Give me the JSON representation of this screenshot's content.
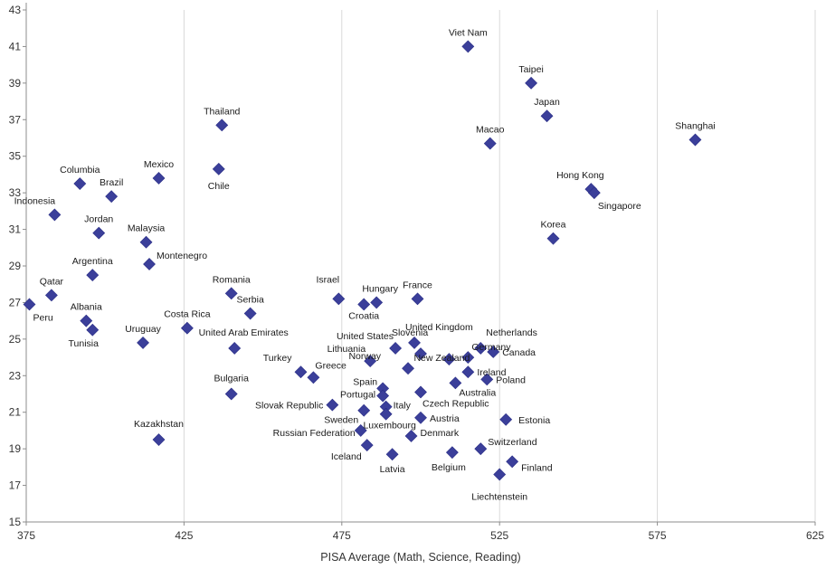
{
  "chart_data": {
    "type": "scatter",
    "title": "",
    "xlabel": "PISA Average  (Math, Science, Reading)",
    "ylabel": "",
    "xlim": [
      375,
      625
    ],
    "ylim": [
      15,
      43
    ],
    "x_ticks": [
      375,
      425,
      475,
      525,
      575,
      625
    ],
    "y_ticks": [
      15,
      17,
      19,
      21,
      23,
      25,
      27,
      29,
      31,
      33,
      35,
      37,
      39,
      41,
      43
    ],
    "grid": "vertical",
    "marker": "diamond",
    "colors": {
      "marker": "#3b3f9a",
      "title": "#2b3a9e"
    },
    "points": [
      {
        "label": "Viet Nam",
        "x": 515,
        "y": 41.0
      },
      {
        "label": "Taipei",
        "x": 535,
        "y": 39.0
      },
      {
        "label": "Japan",
        "x": 540,
        "y": 37.2
      },
      {
        "label": "Shanghai",
        "x": 587,
        "y": 35.9
      },
      {
        "label": "Macao",
        "x": 522,
        "y": 35.7
      },
      {
        "label": "Thailand",
        "x": 437,
        "y": 36.7
      },
      {
        "label": "Chile",
        "x": 436,
        "y": 34.3
      },
      {
        "label": "Mexico",
        "x": 417,
        "y": 33.8
      },
      {
        "label": "Columbia",
        "x": 392,
        "y": 33.5
      },
      {
        "label": "Brazil",
        "x": 402,
        "y": 32.8
      },
      {
        "label": "Hong Kong",
        "x": 554,
        "y": 33.2
      },
      {
        "label": "Singapore",
        "x": 555,
        "y": 33.0
      },
      {
        "label": "Indonesia",
        "x": 384,
        "y": 31.8
      },
      {
        "label": "Jordan",
        "x": 398,
        "y": 30.8
      },
      {
        "label": "Malaysia",
        "x": 413,
        "y": 30.3
      },
      {
        "label": "Korea",
        "x": 542,
        "y": 30.5
      },
      {
        "label": "Montenegro",
        "x": 414,
        "y": 29.1
      },
      {
        "label": "Argentina",
        "x": 396,
        "y": 28.5
      },
      {
        "label": "Qatar",
        "x": 383,
        "y": 27.4
      },
      {
        "label": "Peru",
        "x": 376,
        "y": 26.9
      },
      {
        "label": "Romania",
        "x": 440,
        "y": 27.5
      },
      {
        "label": "Serbia",
        "x": 446,
        "y": 26.4
      },
      {
        "label": "Israel",
        "x": 474,
        "y": 27.2
      },
      {
        "label": "Hungary",
        "x": 486,
        "y": 27.0
      },
      {
        "label": "France",
        "x": 499,
        "y": 27.2
      },
      {
        "label": "Croatia",
        "x": 482,
        "y": 26.9
      },
      {
        "label": "Albania",
        "x": 394,
        "y": 26.0
      },
      {
        "label": "Tunisia",
        "x": 396,
        "y": 25.5
      },
      {
        "label": "Costa Rica",
        "x": 426,
        "y": 25.6
      },
      {
        "label": "Uruguay",
        "x": 412,
        "y": 24.8
      },
      {
        "label": "United Arab Emirates",
        "x": 441,
        "y": 24.5
      },
      {
        "label": "Slovenia",
        "x": 492,
        "y": 24.5
      },
      {
        "label": "United Kingdom",
        "x": 498,
        "y": 24.8
      },
      {
        "label": "Netherlands",
        "x": 519,
        "y": 24.5
      },
      {
        "label": "Canada",
        "x": 523,
        "y": 24.3
      },
      {
        "label": "United States",
        "x": 500,
        "y": 24.2
      },
      {
        "label": "Germany",
        "x": 515,
        "y": 24.0
      },
      {
        "label": "Lithuania",
        "x": 484,
        "y": 23.8
      },
      {
        "label": "Ireland",
        "x": 515,
        "y": 23.2
      },
      {
        "label": "Turkey",
        "x": 462,
        "y": 23.2
      },
      {
        "label": "Greece",
        "x": 466,
        "y": 22.9
      },
      {
        "label": "Norway",
        "x": 496,
        "y": 23.4
      },
      {
        "label": "New Zealand",
        "x": 509,
        "y": 23.9
      },
      {
        "label": "Poland",
        "x": 521,
        "y": 22.8
      },
      {
        "label": "Australia",
        "x": 511,
        "y": 22.6
      },
      {
        "label": "Bulgaria",
        "x": 440,
        "y": 22.0
      },
      {
        "label": "Spain",
        "x": 488,
        "y": 22.3
      },
      {
        "label": "Portugal",
        "x": 488,
        "y": 21.9
      },
      {
        "label": "Czech Republic",
        "x": 500,
        "y": 22.1
      },
      {
        "label": "Slovak Republic",
        "x": 472,
        "y": 21.4
      },
      {
        "label": "Italy",
        "x": 489,
        "y": 21.3
      },
      {
        "label": "Sweden",
        "x": 482,
        "y": 21.1
      },
      {
        "label": "Luxembourg",
        "x": 489,
        "y": 20.9
      },
      {
        "label": "Austria",
        "x": 500,
        "y": 20.7
      },
      {
        "label": "Estonia",
        "x": 527,
        "y": 20.6
      },
      {
        "label": "Russian Federation",
        "x": 481,
        "y": 20.0
      },
      {
        "label": "Denmark",
        "x": 497,
        "y": 19.7
      },
      {
        "label": "Kazakhstan",
        "x": 417,
        "y": 19.5
      },
      {
        "label": "Iceland",
        "x": 483,
        "y": 19.2
      },
      {
        "label": "Switzerland",
        "x": 519,
        "y": 19.0
      },
      {
        "label": "Belgium",
        "x": 510,
        "y": 18.8
      },
      {
        "label": "Latvia",
        "x": 491,
        "y": 18.7
      },
      {
        "label": "Finland",
        "x": 529,
        "y": 18.3
      },
      {
        "label": "Liechtenstein",
        "x": 525,
        "y": 17.6
      }
    ]
  }
}
